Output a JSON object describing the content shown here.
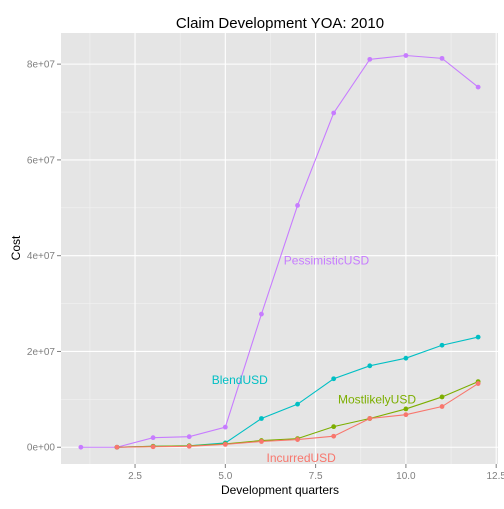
{
  "chart_data": {
    "type": "line",
    "title": "Claim Development  YOA: 2010",
    "xlabel": "Development quarters",
    "ylabel": "Cost",
    "xlim": [
      0.45,
      12.55
    ],
    "ylim": [
      -3500000,
      86500000
    ],
    "x_ticks": [
      2.5,
      5.0,
      7.5,
      10.0,
      12.5
    ],
    "x_tick_labels": [
      "2.5",
      "5.0",
      "7.5",
      "10.0",
      "12.5"
    ],
    "y_ticks": [
      0,
      20000000,
      40000000,
      60000000,
      80000000
    ],
    "y_tick_labels": [
      "0e+00",
      "2e+07",
      "4e+07",
      "6e+07",
      "8e+07"
    ],
    "grid": true,
    "legend": "none",
    "x": [
      1,
      2,
      3,
      4,
      5,
      6,
      7,
      8,
      9,
      10,
      11,
      12
    ],
    "series": [
      {
        "name": "PessimisticUSD",
        "color": "#c77cff",
        "x": [
          1,
          2,
          3,
          4,
          5,
          6,
          7,
          8,
          9,
          10,
          11,
          12
        ],
        "values": [
          0,
          0,
          2000000,
          2200000,
          4200000,
          27800000,
          50500000,
          69800000,
          81000000,
          81800000,
          81200000,
          75200000
        ],
        "label_at": [
          7.8,
          39000000
        ]
      },
      {
        "name": "BlendUSD",
        "color": "#00bfc4",
        "x": [
          2,
          3,
          4,
          5,
          6,
          7,
          8,
          9,
          10,
          11,
          12
        ],
        "values": [
          0,
          200000,
          300000,
          900000,
          6000000,
          9000000,
          14300000,
          17000000,
          18600000,
          21300000,
          23000000
        ],
        "label_at": [
          5.4,
          14000000
        ]
      },
      {
        "name": "MostlikelyUSD",
        "color": "#7cae00",
        "x": [
          2,
          3,
          4,
          5,
          6,
          7,
          8,
          9,
          10,
          11,
          12
        ],
        "values": [
          0,
          200000,
          300000,
          700000,
          1400000,
          1800000,
          4300000,
          6000000,
          8000000,
          10500000,
          13700000
        ],
        "label_at": [
          9.2,
          10000000
        ]
      },
      {
        "name": "IncurredUSD",
        "color": "#f8766d",
        "x": [
          2,
          3,
          4,
          5,
          6,
          7,
          8,
          9,
          10,
          11,
          12
        ],
        "values": [
          0,
          100000,
          200000,
          600000,
          1200000,
          1600000,
          2300000,
          6000000,
          6800000,
          8500000,
          13300000
        ],
        "label_at": [
          7.1,
          -2200000
        ]
      }
    ]
  }
}
